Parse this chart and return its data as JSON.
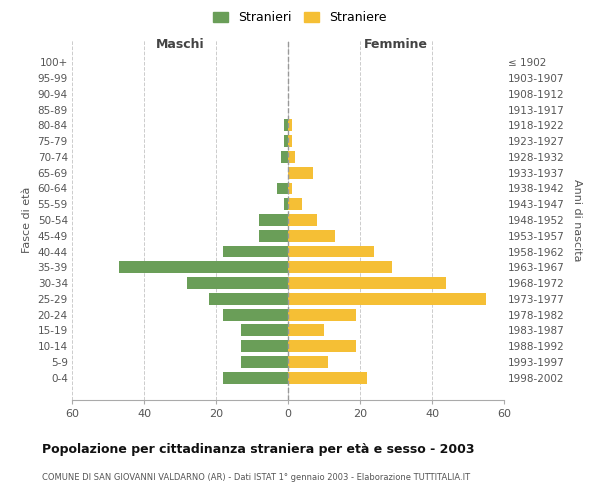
{
  "age_groups": [
    "0-4",
    "5-9",
    "10-14",
    "15-19",
    "20-24",
    "25-29",
    "30-34",
    "35-39",
    "40-44",
    "45-49",
    "50-54",
    "55-59",
    "60-64",
    "65-69",
    "70-74",
    "75-79",
    "80-84",
    "85-89",
    "90-94",
    "95-99",
    "100+"
  ],
  "birth_years": [
    "1998-2002",
    "1993-1997",
    "1988-1992",
    "1983-1987",
    "1978-1982",
    "1973-1977",
    "1968-1972",
    "1963-1967",
    "1958-1962",
    "1953-1957",
    "1948-1952",
    "1943-1947",
    "1938-1942",
    "1933-1937",
    "1928-1932",
    "1923-1927",
    "1918-1922",
    "1913-1917",
    "1908-1912",
    "1903-1907",
    "≤ 1902"
  ],
  "maschi": [
    18,
    13,
    13,
    13,
    18,
    22,
    28,
    47,
    18,
    8,
    8,
    1,
    3,
    0,
    2,
    1,
    1,
    0,
    0,
    0,
    0
  ],
  "femmine": [
    22,
    11,
    19,
    10,
    19,
    55,
    44,
    29,
    24,
    13,
    8,
    4,
    1,
    7,
    2,
    1,
    1,
    0,
    0,
    0,
    0
  ],
  "color_maschi": "#6a9e58",
  "color_femmine": "#f5bf35",
  "title": "Popolazione per cittadinanza straniera per età e sesso - 2003",
  "subtitle": "COMUNE DI SAN GIOVANNI VALDARNO (AR) - Dati ISTAT 1° gennaio 2003 - Elaborazione TUTTITALIA.IT",
  "header_left": "Maschi",
  "header_right": "Femmine",
  "ylabel_left": "Fasce di età",
  "ylabel_right": "Anni di nascita",
  "xlim": 60,
  "legend_maschi": "Stranieri",
  "legend_femmine": "Straniere",
  "bg_color": "#ffffff",
  "grid_color": "#cccccc",
  "dashed_line_color": "#999999",
  "text_color": "#555555",
  "title_color": "#111111",
  "subtitle_color": "#555555"
}
